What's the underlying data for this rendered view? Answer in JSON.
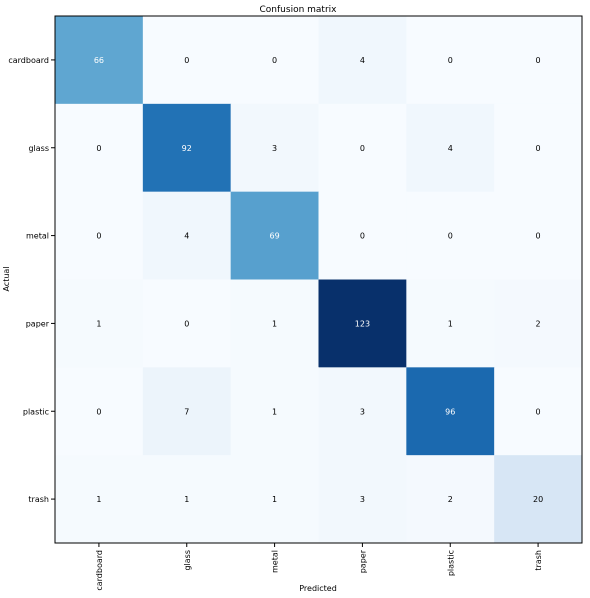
{
  "chart_data": {
    "type": "heatmap",
    "title": "Confusion matrix",
    "xlabel": "Predicted",
    "ylabel": "Actual",
    "x_categories": [
      "cardboard",
      "glass",
      "metal",
      "paper",
      "plastic",
      "trash"
    ],
    "y_categories": [
      "cardboard",
      "glass",
      "metal",
      "paper",
      "plastic",
      "trash"
    ],
    "values": [
      [
        66,
        0,
        0,
        4,
        0,
        0
      ],
      [
        0,
        92,
        3,
        0,
        4,
        0
      ],
      [
        0,
        4,
        69,
        0,
        0,
        0
      ],
      [
        1,
        0,
        1,
        123,
        1,
        2
      ],
      [
        0,
        7,
        1,
        3,
        96,
        0
      ],
      [
        1,
        1,
        1,
        3,
        2,
        20
      ]
    ],
    "vmin": 0,
    "vmax": 123,
    "colormap": "Blues",
    "colors": {
      "low": "#f7fbff",
      "high": "#08306b",
      "text_dark": "#000000",
      "text_light": "#ffffff"
    },
    "x_tick_rotation": "vertical",
    "grid": false
  }
}
